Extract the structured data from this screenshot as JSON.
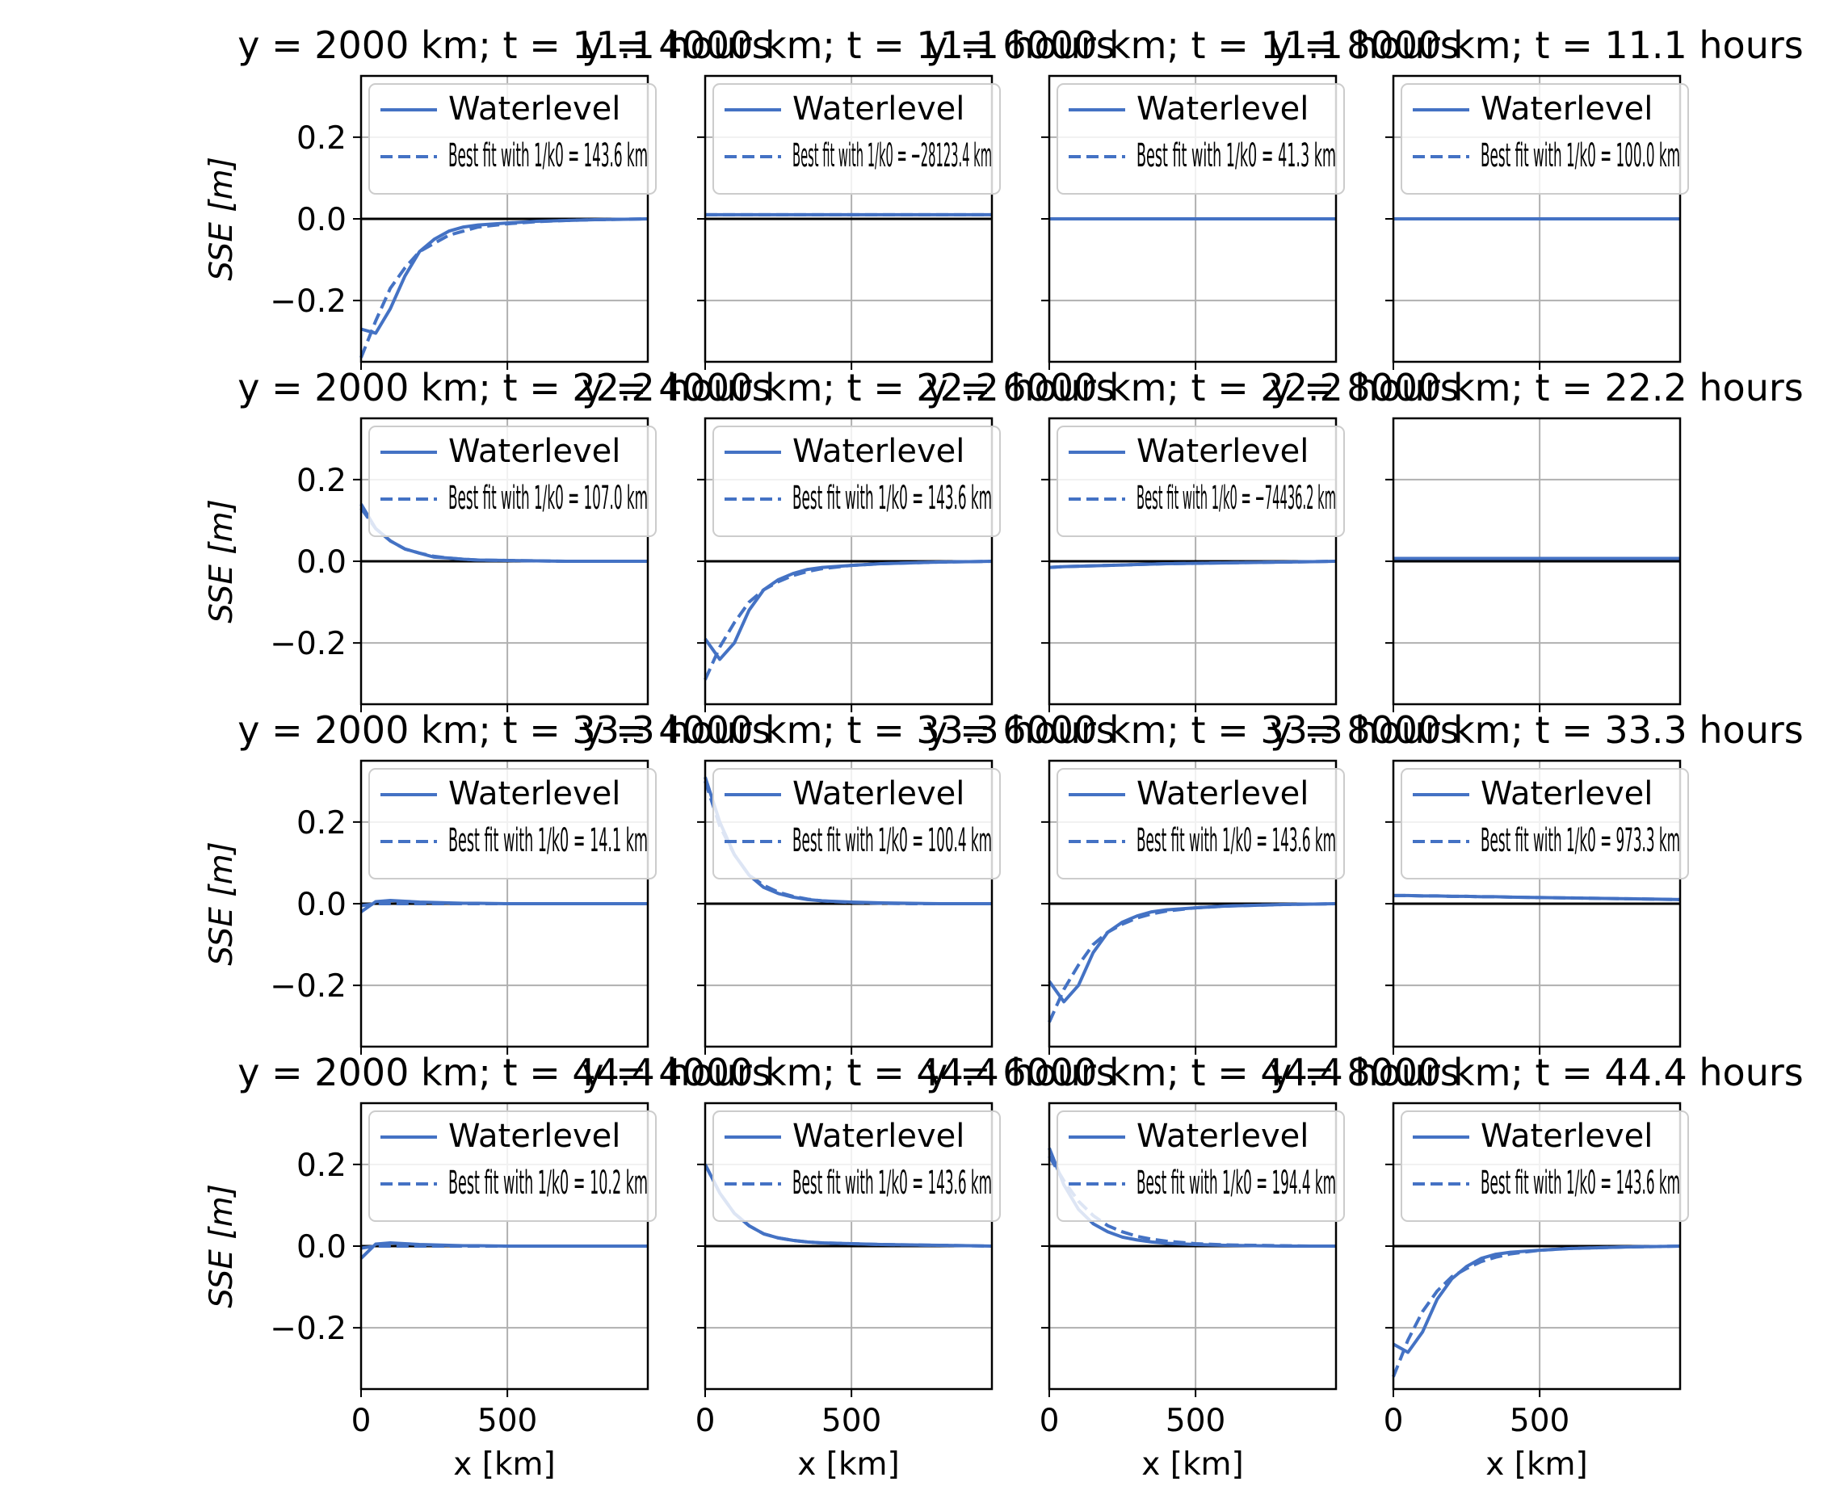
{
  "colors": {
    "series": "#4472c4",
    "zero_line": "#000000",
    "grid": "#b0b0b0",
    "frame": "#000000",
    "legend_border": "#cccccc"
  },
  "labels": {
    "ylabel": "SSE [m]",
    "xlabel": "x [km]",
    "yticks": [
      "0.2",
      "0.0",
      "−0.2"
    ],
    "xticks": [
      "0",
      "500"
    ]
  },
  "chart_data": {
    "type": "line",
    "layout": "4x4 subplot grid",
    "xlim": [
      0,
      980
    ],
    "ylim": [
      -0.35,
      0.35
    ],
    "xticks": [
      0,
      500
    ],
    "yticks": [
      0.2,
      0.0,
      -0.2
    ],
    "grid": true,
    "x": [
      0,
      50,
      100,
      150,
      200,
      250,
      300,
      350,
      400,
      500,
      600,
      700,
      800,
      900,
      980
    ],
    "panels": [
      {
        "title": "y = 2000 km; t = 11.1 hours",
        "series": [
          {
            "name": "Waterlevel",
            "style": "solid",
            "values": [
              -0.27,
              -0.28,
              -0.22,
              -0.14,
              -0.08,
              -0.05,
              -0.03,
              -0.02,
              -0.015,
              -0.01,
              -0.006,
              -0.004,
              -0.002,
              -0.001,
              0.0
            ]
          },
          {
            "name": "Best fit with 1/k0 = 143.6 km",
            "style": "dashed",
            "values": [
              -0.34,
              -0.25,
              -0.17,
              -0.12,
              -0.08,
              -0.06,
              -0.04,
              -0.03,
              -0.02,
              -0.012,
              -0.007,
              -0.004,
              -0.002,
              -0.001,
              0.0
            ]
          }
        ],
        "legend": [
          {
            "text": "Waterlevel",
            "style": "solid"
          },
          {
            "text": "Best fit with 1/k0 = 143.6 km",
            "style": "dashed"
          }
        ]
      },
      {
        "title": "y = 4000 km; t = 11.1 hours",
        "series": [
          {
            "name": "Waterlevel",
            "style": "solid",
            "values": [
              0.01,
              0.01,
              0.01,
              0.01,
              0.01,
              0.01,
              0.01,
              0.01,
              0.01,
              0.01,
              0.01,
              0.01,
              0.01,
              0.01,
              0.01
            ]
          },
          {
            "name": "Best fit with 1/k0 = -28123.4 km",
            "style": "dashed",
            "values": [
              0.01,
              0.01,
              0.01,
              0.01,
              0.01,
              0.01,
              0.01,
              0.01,
              0.01,
              0.01,
              0.01,
              0.01,
              0.01,
              0.01,
              0.01
            ]
          }
        ],
        "legend": [
          {
            "text": "Waterlevel",
            "style": "solid"
          },
          {
            "text": "Best fit with 1/k0 = −28123.4 km",
            "style": "dashed"
          }
        ]
      },
      {
        "title": "y = 6000 km; t = 11.1 hours",
        "series": [
          {
            "name": "Waterlevel",
            "style": "solid",
            "values": [
              0.0,
              0.0,
              0.0,
              0.0,
              0.0,
              0.0,
              0.0,
              0.0,
              0.0,
              0.0,
              0.0,
              0.0,
              0.0,
              0.0,
              0.0
            ]
          },
          {
            "name": "Best fit with 1/k0 = 41.3 km",
            "style": "dashed",
            "values": [
              0.0,
              0.0,
              0.0,
              0.0,
              0.0,
              0.0,
              0.0,
              0.0,
              0.0,
              0.0,
              0.0,
              0.0,
              0.0,
              0.0,
              0.0
            ]
          }
        ],
        "legend": [
          {
            "text": "Waterlevel",
            "style": "solid"
          },
          {
            "text": "Best fit with 1/k0 = 41.3 km",
            "style": "dashed"
          }
        ]
      },
      {
        "title": "y = 8000 km; t = 11.1 hours",
        "series": [
          {
            "name": "Waterlevel",
            "style": "solid",
            "values": [
              0.0,
              0.0,
              0.0,
              0.0,
              0.0,
              0.0,
              0.0,
              0.0,
              0.0,
              0.0,
              0.0,
              0.0,
              0.0,
              0.0,
              0.0
            ]
          },
          {
            "name": "Best fit with 1/k0 = 100.0 km",
            "style": "dashed",
            "values": [
              0.0,
              0.0,
              0.0,
              0.0,
              0.0,
              0.0,
              0.0,
              0.0,
              0.0,
              0.0,
              0.0,
              0.0,
              0.0,
              0.0,
              0.0
            ]
          }
        ],
        "legend": [
          {
            "text": "Waterlevel",
            "style": "solid"
          },
          {
            "text": "Best fit with 1/k0 = 100.0 km",
            "style": "dashed"
          }
        ]
      },
      {
        "title": "y = 2000 km; t = 22.2 hours",
        "series": [
          {
            "name": "Waterlevel",
            "style": "solid",
            "values": [
              0.14,
              0.08,
              0.05,
              0.03,
              0.02,
              0.01,
              0.008,
              0.005,
              0.003,
              0.002,
              0.001,
              0.0,
              0.0,
              0.0,
              0.0
            ]
          },
          {
            "name": "Best fit with 1/k0 = 107.0 km",
            "style": "dashed",
            "values": [
              0.13,
              0.08,
              0.05,
              0.03,
              0.02,
              0.012,
              0.008,
              0.005,
              0.003,
              0.002,
              0.001,
              0.0,
              0.0,
              0.0,
              0.0
            ]
          }
        ],
        "legend": [
          {
            "text": "Waterlevel",
            "style": "solid"
          },
          {
            "text": "Best fit with 1/k0 = 107.0 km",
            "style": "dashed"
          }
        ]
      },
      {
        "title": "y = 4000 km; t = 22.2 hours",
        "series": [
          {
            "name": "Waterlevel",
            "style": "solid",
            "values": [
              -0.19,
              -0.24,
              -0.2,
              -0.12,
              -0.07,
              -0.045,
              -0.03,
              -0.02,
              -0.015,
              -0.01,
              -0.006,
              -0.004,
              -0.002,
              -0.001,
              0.0
            ]
          },
          {
            "name": "Best fit with 1/k0 = 143.6 km",
            "style": "dashed",
            "values": [
              -0.29,
              -0.21,
              -0.15,
              -0.1,
              -0.07,
              -0.05,
              -0.035,
              -0.025,
              -0.018,
              -0.01,
              -0.006,
              -0.004,
              -0.002,
              -0.001,
              0.0
            ]
          }
        ],
        "legend": [
          {
            "text": "Waterlevel",
            "style": "solid"
          },
          {
            "text": "Best fit with 1/k0 = 143.6 km",
            "style": "dashed"
          }
        ]
      },
      {
        "title": "y = 6000 km; t = 22.2 hours",
        "series": [
          {
            "name": "Waterlevel",
            "style": "solid",
            "values": [
              -0.015,
              -0.013,
              -0.012,
              -0.011,
              -0.01,
              -0.009,
              -0.008,
              -0.007,
              -0.006,
              -0.005,
              -0.004,
              -0.003,
              -0.002,
              -0.001,
              0.0
            ]
          },
          {
            "name": "Best fit with 1/k0 = -74436.2 km",
            "style": "dashed",
            "values": [
              -0.015,
              -0.013,
              -0.012,
              -0.011,
              -0.01,
              -0.009,
              -0.008,
              -0.007,
              -0.006,
              -0.005,
              -0.004,
              -0.003,
              -0.002,
              -0.001,
              0.0
            ]
          }
        ],
        "legend": [
          {
            "text": "Waterlevel",
            "style": "solid"
          },
          {
            "text": "Best fit with 1/k0 = −74436.2 km",
            "style": "dashed"
          }
        ]
      },
      {
        "title": "y = 8000 km; t = 22.2 hours",
        "series": [
          {
            "name": "Waterlevel",
            "style": "solid",
            "values": [
              0.007,
              0.007,
              0.007,
              0.007,
              0.007,
              0.007,
              0.007,
              0.007,
              0.007,
              0.007,
              0.007,
              0.007,
              0.007,
              0.007,
              0.007
            ]
          },
          {
            "name": "Best fit",
            "style": "dashed",
            "values": [
              0.007,
              0.007,
              0.007,
              0.007,
              0.007,
              0.007,
              0.007,
              0.007,
              0.007,
              0.007,
              0.007,
              0.007,
              0.007,
              0.007,
              0.007
            ]
          }
        ],
        "legend": []
      },
      {
        "title": "y = 2000 km; t = 33.3 hours",
        "series": [
          {
            "name": "Waterlevel",
            "style": "solid",
            "values": [
              -0.02,
              0.005,
              0.008,
              0.006,
              0.004,
              0.003,
              0.002,
              0.001,
              0.001,
              0.0,
              0.0,
              0.0,
              0.0,
              0.0,
              0.0
            ]
          },
          {
            "name": "Best fit with 1/k0 = 14.1 km",
            "style": "dashed",
            "values": [
              -0.005,
              0.0,
              0.0,
              0.0,
              0.0,
              0.0,
              0.0,
              0.0,
              0.0,
              0.0,
              0.0,
              0.0,
              0.0,
              0.0,
              0.0
            ]
          }
        ],
        "legend": [
          {
            "text": "Waterlevel",
            "style": "solid"
          },
          {
            "text": "Best fit with 1/k0 = 14.1 km",
            "style": "dashed"
          }
        ]
      },
      {
        "title": "y = 4000 km; t = 33.3 hours",
        "series": [
          {
            "name": "Waterlevel",
            "style": "solid",
            "values": [
              0.31,
              0.2,
              0.12,
              0.07,
              0.04,
              0.025,
              0.016,
              0.01,
              0.007,
              0.004,
              0.002,
              0.001,
              0.0,
              0.0,
              0.0
            ]
          },
          {
            "name": "Best fit with 1/k0 = 100.4 km",
            "style": "dashed",
            "values": [
              0.3,
              0.19,
              0.12,
              0.07,
              0.045,
              0.028,
              0.018,
              0.011,
              0.007,
              0.003,
              0.001,
              0.0,
              0.0,
              0.0,
              0.0
            ]
          }
        ],
        "legend": [
          {
            "text": "Waterlevel",
            "style": "solid"
          },
          {
            "text": "Best fit with 1/k0 = 100.4 km",
            "style": "dashed"
          }
        ]
      },
      {
        "title": "y = 6000 km; t = 33.3 hours",
        "series": [
          {
            "name": "Waterlevel",
            "style": "solid",
            "values": [
              -0.19,
              -0.24,
              -0.2,
              -0.12,
              -0.07,
              -0.045,
              -0.03,
              -0.02,
              -0.015,
              -0.01,
              -0.006,
              -0.004,
              -0.002,
              -0.001,
              0.0
            ]
          },
          {
            "name": "Best fit with 1/k0 = 143.6 km",
            "style": "dashed",
            "values": [
              -0.29,
              -0.21,
              -0.15,
              -0.1,
              -0.07,
              -0.05,
              -0.035,
              -0.025,
              -0.018,
              -0.01,
              -0.006,
              -0.004,
              -0.002,
              -0.001,
              0.0
            ]
          }
        ],
        "legend": [
          {
            "text": "Waterlevel",
            "style": "solid"
          },
          {
            "text": "Best fit with 1/k0 = 143.6 km",
            "style": "dashed"
          }
        ]
      },
      {
        "title": "y = 8000 km; t = 33.3 hours",
        "series": [
          {
            "name": "Waterlevel",
            "style": "solid",
            "values": [
              0.02,
              0.02,
              0.019,
              0.019,
              0.018,
              0.018,
              0.017,
              0.017,
              0.016,
              0.015,
              0.014,
              0.013,
              0.012,
              0.011,
              0.01
            ]
          },
          {
            "name": "Best fit with 1/k0 = 973.3 km",
            "style": "dashed",
            "values": [
              0.02,
              0.02,
              0.019,
              0.019,
              0.018,
              0.018,
              0.017,
              0.017,
              0.016,
              0.015,
              0.014,
              0.013,
              0.012,
              0.011,
              0.01
            ]
          }
        ],
        "legend": [
          {
            "text": "Waterlevel",
            "style": "solid"
          },
          {
            "text": "Best fit with 1/k0 = 973.3 km",
            "style": "dashed"
          }
        ]
      },
      {
        "title": "y = 2000 km; t = 44.4 hours",
        "series": [
          {
            "name": "Waterlevel",
            "style": "solid",
            "values": [
              -0.03,
              0.005,
              0.008,
              0.006,
              0.004,
              0.003,
              0.002,
              0.001,
              0.001,
              0.0,
              0.0,
              0.0,
              0.0,
              0.0,
              0.0
            ]
          },
          {
            "name": "Best fit with 1/k0 = 10.2 km",
            "style": "dashed",
            "values": [
              -0.005,
              0.0,
              0.0,
              0.0,
              0.0,
              0.0,
              0.0,
              0.0,
              0.0,
              0.0,
              0.0,
              0.0,
              0.0,
              0.0,
              0.0
            ]
          }
        ],
        "legend": [
          {
            "text": "Waterlevel",
            "style": "solid"
          },
          {
            "text": "Best fit with 1/k0 = 10.2 km",
            "style": "dashed"
          }
        ]
      },
      {
        "title": "y = 4000 km; t = 44.4 hours",
        "series": [
          {
            "name": "Waterlevel",
            "style": "solid",
            "values": [
              0.2,
              0.13,
              0.08,
              0.05,
              0.03,
              0.02,
              0.014,
              0.01,
              0.008,
              0.006,
              0.004,
              0.003,
              0.002,
              0.001,
              0.0
            ]
          },
          {
            "name": "Best fit with 1/k0 = 143.6 km",
            "style": "dashed",
            "values": [
              0.2,
              0.13,
              0.08,
              0.05,
              0.03,
              0.02,
              0.014,
              0.01,
              0.008,
              0.006,
              0.004,
              0.003,
              0.002,
              0.001,
              0.0
            ]
          }
        ],
        "legend": [
          {
            "text": "Waterlevel",
            "style": "solid"
          },
          {
            "text": "Best fit with 1/k0 = 143.6 km",
            "style": "dashed"
          }
        ]
      },
      {
        "title": "y = 6000 km; t = 44.4 hours",
        "series": [
          {
            "name": "Waterlevel",
            "style": "solid",
            "values": [
              0.24,
              0.15,
              0.09,
              0.055,
              0.035,
              0.022,
              0.015,
              0.01,
              0.007,
              0.004,
              0.002,
              0.001,
              0.0,
              0.0,
              0.0
            ]
          },
          {
            "name": "Best fit with 1/k0 = 194.4 km",
            "style": "dashed",
            "values": [
              0.22,
              0.16,
              0.11,
              0.075,
              0.05,
              0.035,
              0.024,
              0.017,
              0.012,
              0.006,
              0.003,
              0.002,
              0.001,
              0.0,
              0.0
            ]
          }
        ],
        "legend": [
          {
            "text": "Waterlevel",
            "style": "solid"
          },
          {
            "text": "Best fit with 1/k0 = 194.4 km",
            "style": "dashed"
          }
        ]
      },
      {
        "title": "y = 8000 km; t = 44.4 hours",
        "series": [
          {
            "name": "Waterlevel",
            "style": "solid",
            "values": [
              -0.24,
              -0.26,
              -0.21,
              -0.13,
              -0.08,
              -0.05,
              -0.03,
              -0.02,
              -0.015,
              -0.01,
              -0.006,
              -0.004,
              -0.002,
              -0.001,
              0.0
            ]
          },
          {
            "name": "Best fit with 1/k0 = 143.6 km",
            "style": "dashed",
            "values": [
              -0.32,
              -0.23,
              -0.16,
              -0.11,
              -0.075,
              -0.055,
              -0.038,
              -0.027,
              -0.019,
              -0.01,
              -0.006,
              -0.004,
              -0.002,
              -0.001,
              0.0
            ]
          }
        ],
        "legend": [
          {
            "text": "Waterlevel",
            "style": "solid"
          },
          {
            "text": "Best fit with 1/k0 = 143.6 km",
            "style": "dashed"
          }
        ]
      }
    ]
  }
}
